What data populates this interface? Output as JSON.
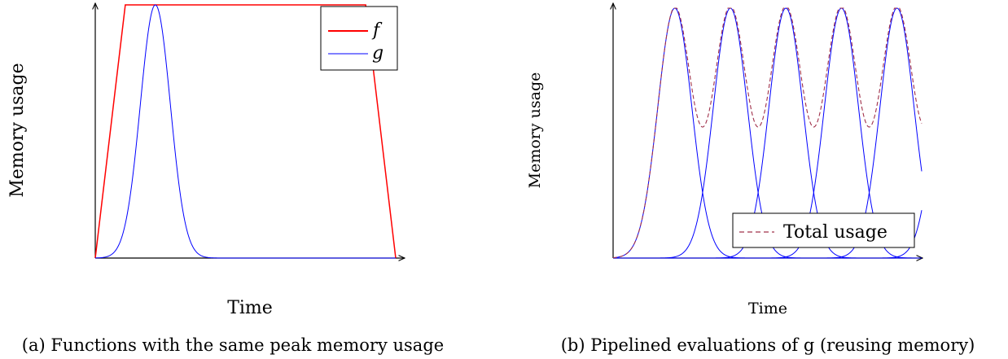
{
  "chart_data": [
    {
      "type": "line",
      "xlabel": "Time",
      "ylabel": "Memory usage",
      "caption": "(a) Functions with the same peak memory usage",
      "grid": false,
      "legend_position": "top-right",
      "xlim": [
        0,
        10
      ],
      "ylim": [
        0,
        1
      ],
      "series": [
        {
          "name": "f",
          "color": "#ff0000",
          "x": [
            0,
            1,
            9,
            10
          ],
          "y": [
            0,
            1,
            1,
            0
          ]
        },
        {
          "name": "g",
          "color": "#0000ff",
          "shape": "gaussian",
          "center": 2,
          "width": 0.5,
          "peak": 1
        }
      ]
    },
    {
      "type": "line",
      "xlabel": "Time",
      "ylabel": "Memory usage",
      "caption": "(b) Pipelined evaluations of g (reusing memory)",
      "grid": false,
      "legend_position": "bottom-right",
      "xlim": [
        0,
        10
      ],
      "ylim": [
        0,
        1
      ],
      "series": [
        {
          "name": "",
          "color": "#0000ff",
          "shape": "gaussian",
          "centers": [
            2,
            3.8,
            5.6,
            7.4,
            9.2,
            11
          ],
          "width": 0.55,
          "peak": 1
        },
        {
          "name": "Total usage",
          "color": "#a0304a",
          "style": "dashed",
          "shape": "sum of gaussians"
        }
      ]
    }
  ]
}
